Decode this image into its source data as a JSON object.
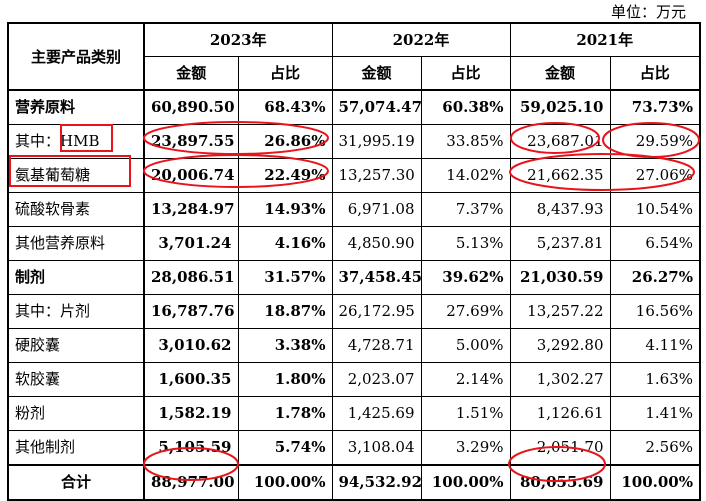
{
  "unit_label": "单位：万元",
  "header": {
    "category": "主要产品类别",
    "years": [
      "2023年",
      "2022年",
      "2021年"
    ],
    "amount": "金额",
    "ratio": "占比"
  },
  "rows": [
    {
      "label": "营养原料",
      "bold": true,
      "v": [
        "60,890.50",
        "68.43%",
        "57,074.47",
        "60.38%",
        "59,025.10",
        "73.73%"
      ]
    },
    {
      "label_prefix": "其中：",
      "label_boxed": "HMB",
      "bold": false,
      "v": [
        "23,897.55",
        "26.86%",
        "31,995.19",
        "33.85%",
        "23,687.01",
        "29.59%"
      ]
    },
    {
      "label": "氨基葡萄糖",
      "bold": false,
      "v": [
        "20,006.74",
        "22.49%",
        "13,257.30",
        "14.02%",
        "21,662.35",
        "27.06%"
      ]
    },
    {
      "label": "硫酸软骨素",
      "bold": false,
      "v": [
        "13,284.97",
        "14.93%",
        "6,971.08",
        "7.37%",
        "8,437.93",
        "10.54%"
      ]
    },
    {
      "label": "其他营养原料",
      "bold": false,
      "v": [
        "3,701.24",
        "4.16%",
        "4,850.90",
        "5.13%",
        "5,237.81",
        "6.54%"
      ]
    },
    {
      "label": "制剂",
      "bold": true,
      "v": [
        "28,086.51",
        "31.57%",
        "37,458.45",
        "39.62%",
        "21,030.59",
        "26.27%"
      ]
    },
    {
      "label": "其中：片剂",
      "bold": false,
      "v": [
        "16,787.76",
        "18.87%",
        "26,172.95",
        "27.69%",
        "13,257.22",
        "16.56%"
      ]
    },
    {
      "label": "硬胶囊",
      "bold": false,
      "v": [
        "3,010.62",
        "3.38%",
        "4,728.71",
        "5.00%",
        "3,292.80",
        "4.11%"
      ]
    },
    {
      "label": "软胶囊",
      "bold": false,
      "v": [
        "1,600.35",
        "1.80%",
        "2,023.07",
        "2.14%",
        "1,302.27",
        "1.63%"
      ]
    },
    {
      "label": "粉剂",
      "bold": false,
      "v": [
        "1,582.19",
        "1.78%",
        "1,425.69",
        "1.51%",
        "1,126.61",
        "1.41%"
      ]
    },
    {
      "label": "其他制剂",
      "bold": false,
      "v": [
        "5,105.59",
        "5.74%",
        "3,108.04",
        "3.29%",
        "2,051.70",
        "2.56%"
      ]
    },
    {
      "label": "合计",
      "bold": true,
      "total": true,
      "v": [
        "88,977.00",
        "100.00%",
        "94,532.92",
        "100.00%",
        "80,055.69",
        "100.00%"
      ]
    }
  ],
  "annotation_colors": {
    "highlight": "#e8141c"
  }
}
